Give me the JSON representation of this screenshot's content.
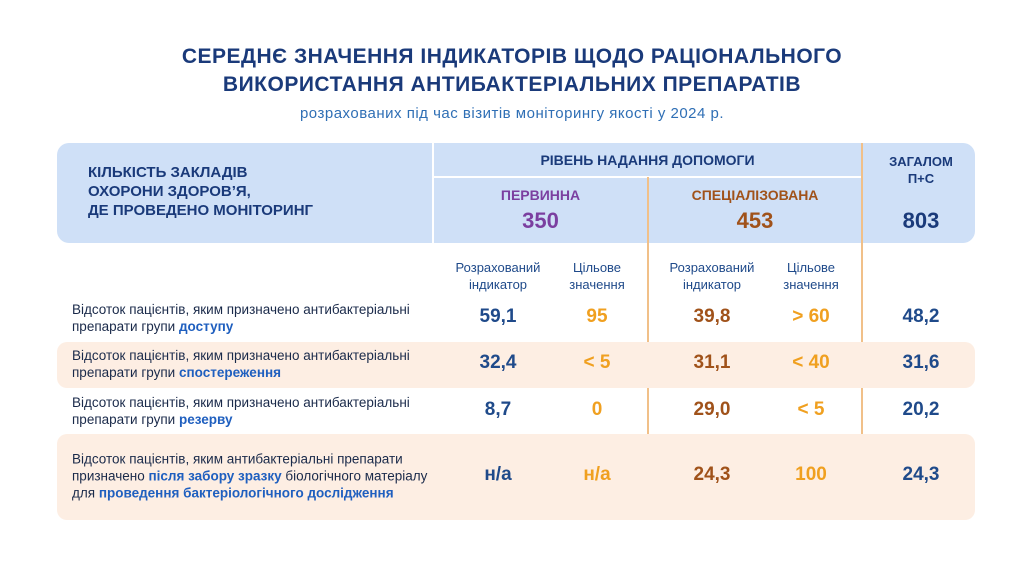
{
  "header": {
    "title": [
      "СЕРЕДНЄ ЗНАЧЕННЯ ІНДИКАТОРІВ ЩОДО РАЦІОНАЛЬНОГО",
      "ВИКОРИСТАННЯ АНТИБАКТЕРІАЛЬНИХ ПРЕПАРАТІВ"
    ],
    "subtitle": "розрахованих під час візитів моніторингу якості у 2024 р."
  },
  "table": {
    "head": {
      "facilities": [
        "КІЛЬКІСТЬ ЗАКЛАДІВ",
        "ОХОРОНИ ЗДОРОВ’Я,",
        "ДЕ ПРОВЕДЕНО МОНІТОРИНГ"
      ],
      "level": "РІВЕНЬ НАДАННЯ ДОПОМОГИ",
      "primary": {
        "name": "ПЕРВИННА",
        "count": "350"
      },
      "specialized": {
        "name": "СПЕЦІАЛІЗОВАНА",
        "count": "453"
      },
      "total": {
        "name": [
          "ЗАГАЛОМ",
          "П+С"
        ],
        "count": "803"
      }
    },
    "subhead": [
      [
        "Розрахований",
        "індикатор"
      ],
      [
        "Цільове",
        "значення"
      ],
      [
        "Розрахований",
        "індикатор"
      ],
      [
        "Цільове",
        "значення"
      ]
    ],
    "rows": [
      {
        "label": [
          "Відсоток пацієнтів, яким призначено антибактеріальні препарати групи ",
          "доступу"
        ],
        "values": [
          "59,1",
          "95",
          "39,8",
          "> 60",
          "48,2"
        ]
      },
      {
        "label": [
          "Відсоток пацієнтів, яким призначено антибактеріальні препарати групи ",
          "спостереження"
        ],
        "values": [
          "32,4",
          "< 5",
          "31,1",
          "< 40",
          "31,6"
        ]
      },
      {
        "label": [
          "Відсоток пацієнтів, яким призначено антибактеріальні препарати групи ",
          "резерву"
        ],
        "values": [
          "8,7",
          "0",
          "29,0",
          "< 5",
          "20,2"
        ]
      },
      {
        "label": [
          "Відсоток пацієнтів, яким антибактеріальні препарати призначено ",
          "після забору зразку",
          " біологічного матеріалу для ",
          "проведення бактеріологічного дослідження"
        ],
        "values": [
          "н/а",
          "н/а",
          "24,3",
          "100",
          "24,3"
        ]
      }
    ]
  }
}
